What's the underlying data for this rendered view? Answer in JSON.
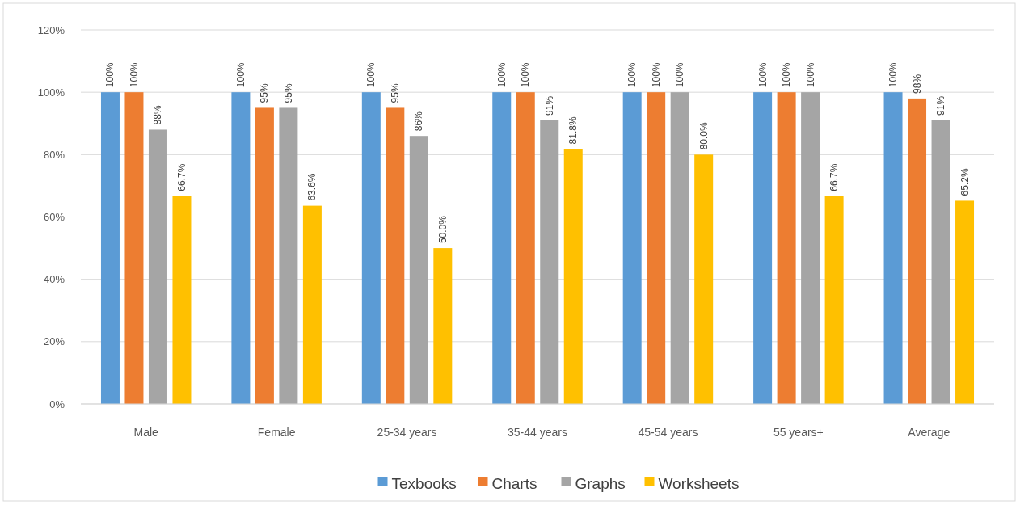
{
  "chart_data": {
    "type": "bar",
    "categories": [
      "Male",
      "Female",
      "25-34 years",
      "35-44 years",
      "45-54 years",
      "55 years+",
      "Average"
    ],
    "series": [
      {
        "name": "Texbooks",
        "color": "#5b9bd5",
        "values": [
          100,
          100,
          100,
          100,
          100,
          100,
          100
        ],
        "value_labels": [
          "100%",
          "100%",
          "100%",
          "100%",
          "100%",
          "100%",
          "100%"
        ]
      },
      {
        "name": "Charts",
        "color": "#ed7d31",
        "values": [
          100,
          95,
          95,
          100,
          100,
          100,
          98
        ],
        "value_labels": [
          "100%",
          "95%",
          "95%",
          "100%",
          "100%",
          "100%",
          "98%"
        ]
      },
      {
        "name": "Graphs",
        "color": "#a5a5a5",
        "values": [
          88,
          95,
          86,
          91,
          100,
          100,
          91
        ],
        "value_labels": [
          "88%",
          "95%",
          "86%",
          "91%",
          "100%",
          "100%",
          "91%"
        ]
      },
      {
        "name": "Worksheets",
        "color": "#ffc000",
        "values": [
          66.7,
          63.6,
          50.0,
          81.8,
          80.0,
          66.7,
          65.2
        ],
        "value_labels": [
          "66.7%",
          "63.6%",
          "50.0%",
          "81.8%",
          "80.0%",
          "66.7%",
          "65.2%"
        ]
      }
    ],
    "ylim": [
      0,
      120
    ],
    "yticks": [
      {
        "value": 0,
        "label": "0%"
      },
      {
        "value": 20,
        "label": "20%"
      },
      {
        "value": 40,
        "label": "40%"
      },
      {
        "value": 60,
        "label": "60%"
      },
      {
        "value": 80,
        "label": "80%"
      },
      {
        "value": 100,
        "label": "100%"
      },
      {
        "value": 120,
        "label": "120%"
      }
    ],
    "grid": "y",
    "legend": "bottom"
  }
}
